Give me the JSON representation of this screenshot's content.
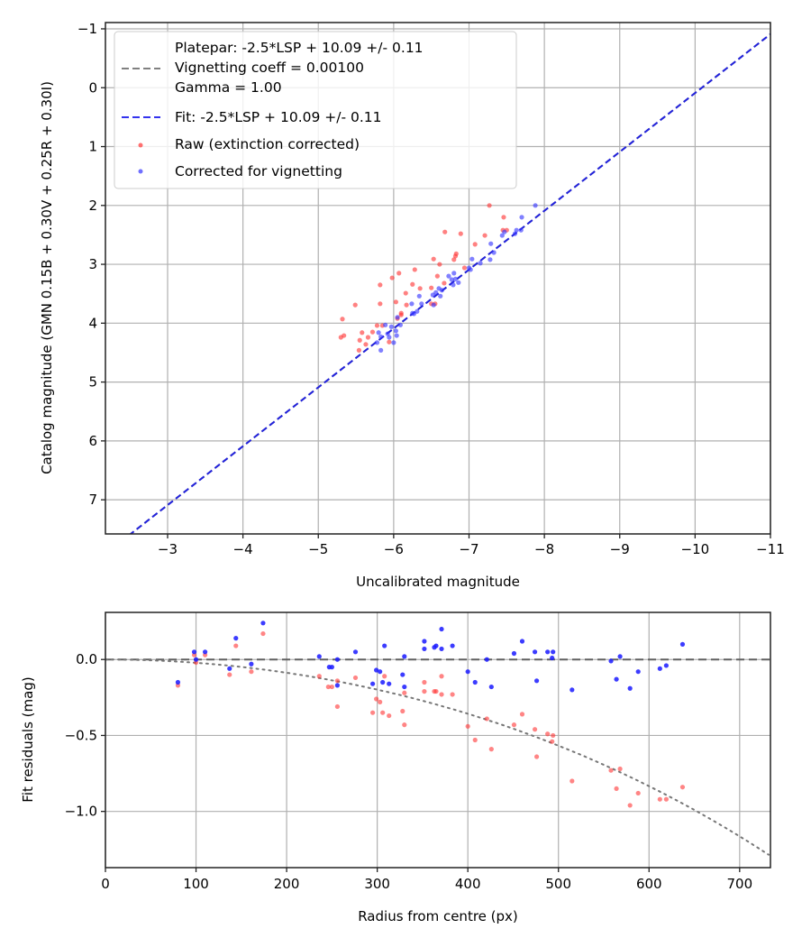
{
  "chart_data": [
    {
      "type": "scatter",
      "panel": "top",
      "xlabel": "Uncalibrated magnitude",
      "ylabel": "Catalog magnitude (GMN 0.15B + 0.30V + 0.25R + 0.30I)",
      "xlim": [
        -2.175,
        -11
      ],
      "ylim": [
        7.58,
        -1.107
      ],
      "x_inverted": true,
      "y_inverted": true,
      "xticks": [
        -3,
        -4,
        -5,
        -6,
        -7,
        -8,
        -9,
        -10,
        -11
      ],
      "xtick_labels": [
        "−3",
        "−4",
        "−5",
        "−6",
        "−7",
        "−8",
        "−9",
        "−10",
        "−11"
      ],
      "yticks": [
        -1,
        0,
        1,
        2,
        3,
        4,
        5,
        6,
        7
      ],
      "ytick_labels": [
        "−1",
        "0",
        "1",
        "2",
        "3",
        "4",
        "5",
        "6",
        "7"
      ],
      "grid": true,
      "legend_position": "top-left",
      "legend": [
        {
          "label": "Platepar: -2.5*LSP + 10.09 +/- 0.11",
          "style": "dashed",
          "color": "#808080"
        },
        {
          "label": "Vignetting coeff = 0.00100",
          "style": "none"
        },
        {
          "label": "Gamma = 1.00",
          "style": "none"
        },
        {
          "label": "Fit: -2.5*LSP + 10.09 +/- 0.11",
          "style": "dashed",
          "color": "#3333ee"
        },
        {
          "label": "Raw (extinction corrected)",
          "style": "dot",
          "color": "#ff4444"
        },
        {
          "label": "Corrected for vignetting",
          "style": "dot",
          "color": "#4444ff"
        }
      ],
      "lines": [
        {
          "name": "Platepar",
          "intercept": 10.09,
          "slope": 1,
          "color": "#808080",
          "style": "dashed"
        },
        {
          "name": "Fit",
          "intercept": 10.09,
          "slope": 1,
          "color": "#2222dd",
          "style": "dashed"
        }
      ],
      "series": [
        {
          "name": "Raw (extinction corrected)",
          "color": "#ff3333",
          "points": [
            [
              -7.27,
              2.0
            ],
            [
              -7.46,
              2.2
            ],
            [
              -6.68,
              2.45
            ],
            [
              -6.89,
              2.48
            ],
            [
              -7.08,
              2.66
            ],
            [
              -7.21,
              2.51
            ],
            [
              -7.45,
              2.42
            ],
            [
              -7.5,
              2.42
            ],
            [
              -6.83,
              2.82
            ],
            [
              -6.82,
              2.86
            ],
            [
              -6.8,
              2.92
            ],
            [
              -6.53,
              2.91
            ],
            [
              -6.61,
              3.0
            ],
            [
              -6.94,
              3.06
            ],
            [
              -6.07,
              3.15
            ],
            [
              -6.28,
              3.09
            ],
            [
              -5.98,
              3.23
            ],
            [
              -5.82,
              3.35
            ],
            [
              -6.25,
              3.34
            ],
            [
              -6.35,
              3.41
            ],
            [
              -6.58,
              3.2
            ],
            [
              -6.67,
              3.32
            ],
            [
              -6.5,
              3.4
            ],
            [
              -6.16,
              3.49
            ],
            [
              -5.49,
              3.69
            ],
            [
              -5.82,
              3.67
            ],
            [
              -6.03,
              3.64
            ],
            [
              -6.17,
              3.69
            ],
            [
              -6.5,
              3.67
            ],
            [
              -6.1,
              3.83
            ],
            [
              -6.55,
              3.67
            ],
            [
              -5.32,
              3.93
            ],
            [
              -5.3,
              4.24
            ],
            [
              -5.34,
              4.21
            ],
            [
              -5.58,
              4.16
            ],
            [
              -5.55,
              4.29
            ],
            [
              -5.66,
              4.24
            ],
            [
              -5.54,
              4.46
            ],
            [
              -5.63,
              4.36
            ],
            [
              -5.72,
              4.15
            ],
            [
              -5.78,
              4.04
            ],
            [
              -5.85,
              4.04
            ],
            [
              -5.94,
              4.32
            ],
            [
              -6.05,
              3.92
            ],
            [
              -6.1,
              3.86
            ]
          ]
        },
        {
          "name": "Corrected for vignetting",
          "color": "#3333ff",
          "points": [
            [
              -7.88,
              2.0
            ],
            [
              -7.7,
              2.2
            ],
            [
              -7.69,
              2.42
            ],
            [
              -7.63,
              2.42
            ],
            [
              -7.61,
              2.48
            ],
            [
              -7.47,
              2.45
            ],
            [
              -7.44,
              2.51
            ],
            [
              -7.29,
              2.65
            ],
            [
              -7.33,
              2.8
            ],
            [
              -7.28,
              2.92
            ],
            [
              -7.15,
              2.98
            ],
            [
              -7.04,
              2.91
            ],
            [
              -7.0,
              3.06
            ],
            [
              -7.02,
              3.09
            ],
            [
              -6.8,
              3.15
            ],
            [
              -6.73,
              3.2
            ],
            [
              -6.82,
              3.25
            ],
            [
              -6.77,
              3.26
            ],
            [
              -6.86,
              3.31
            ],
            [
              -6.79,
              3.35
            ],
            [
              -6.6,
              3.41
            ],
            [
              -6.64,
              3.44
            ],
            [
              -6.56,
              3.48
            ],
            [
              -6.52,
              3.52
            ],
            [
              -6.62,
              3.54
            ],
            [
              -6.34,
              3.54
            ],
            [
              -6.24,
              3.67
            ],
            [
              -6.37,
              3.67
            ],
            [
              -6.53,
              3.69
            ],
            [
              -6.31,
              3.8
            ],
            [
              -6.25,
              3.83
            ],
            [
              -6.27,
              3.84
            ],
            [
              -5.89,
              4.03
            ],
            [
              -5.97,
              4.06
            ],
            [
              -6.03,
              4.13
            ],
            [
              -5.8,
              4.16
            ],
            [
              -5.83,
              4.23
            ],
            [
              -5.94,
              4.24
            ],
            [
              -5.78,
              4.33
            ],
            [
              -6.0,
              4.33
            ],
            [
              -5.83,
              4.46
            ],
            [
              -5.92,
              4.18
            ],
            [
              -6.04,
              4.21
            ],
            [
              -6.05,
              3.9
            ],
            [
              -6.09,
              4.03
            ]
          ]
        }
      ]
    },
    {
      "type": "scatter",
      "panel": "bottom",
      "xlabel": "Radius from centre (px)",
      "ylabel": "Fit residuals (mag)",
      "xlim": [
        0,
        734
      ],
      "ylim": [
        -1.37,
        0.31
      ],
      "xticks": [
        0,
        100,
        200,
        300,
        400,
        500,
        600,
        700
      ],
      "xtick_labels": [
        "0",
        "100",
        "200",
        "300",
        "400",
        "500",
        "600",
        "700"
      ],
      "yticks": [
        0.0,
        -0.5,
        -1.0
      ],
      "ytick_labels": [
        "0.0",
        "−0.5",
        "−1.0"
      ],
      "grid": true,
      "lines": [
        {
          "name": "zero",
          "type": "hline",
          "y": 0,
          "color": "#555555",
          "style": "dashed"
        },
        {
          "name": "vignetting model",
          "type": "curve",
          "formula": "10*log10(cos(0.001*r))",
          "color": "#777777",
          "style": "dotted"
        }
      ],
      "series": [
        {
          "name": "Raw (extinction corrected)",
          "color": "#ff3333",
          "points": [
            [
              80,
              -0.17
            ],
            [
              98,
              0.03
            ],
            [
              100,
              -0.02
            ],
            [
              110,
              0.03
            ],
            [
              137,
              -0.1
            ],
            [
              144,
              0.09
            ],
            [
              161,
              -0.08
            ],
            [
              174,
              0.17
            ],
            [
              236,
              -0.11
            ],
            [
              246,
              -0.18
            ],
            [
              250,
              -0.18
            ],
            [
              256,
              -0.14
            ],
            [
              256,
              -0.31
            ],
            [
              276,
              -0.12
            ],
            [
              295,
              -0.35
            ],
            [
              299,
              -0.26
            ],
            [
              303,
              -0.28
            ],
            [
              306,
              -0.35
            ],
            [
              308,
              -0.11
            ],
            [
              313,
              -0.37
            ],
            [
              328,
              -0.34
            ],
            [
              330,
              -0.22
            ],
            [
              330,
              -0.43
            ],
            [
              352,
              -0.15
            ],
            [
              352,
              -0.21
            ],
            [
              363,
              -0.21
            ],
            [
              365,
              -0.21
            ],
            [
              371,
              -0.11
            ],
            [
              371,
              -0.23
            ],
            [
              383,
              -0.23
            ],
            [
              400,
              -0.44
            ],
            [
              408,
              -0.53
            ],
            [
              421,
              -0.39
            ],
            [
              426,
              -0.59
            ],
            [
              451,
              -0.43
            ],
            [
              460,
              -0.36
            ],
            [
              474,
              -0.46
            ],
            [
              476,
              -0.64
            ],
            [
              488,
              -0.49
            ],
            [
              493,
              -0.54
            ],
            [
              494,
              -0.5
            ],
            [
              515,
              -0.8
            ],
            [
              558,
              -0.73
            ],
            [
              564,
              -0.85
            ],
            [
              568,
              -0.72
            ],
            [
              579,
              -0.96
            ],
            [
              588,
              -0.88
            ],
            [
              612,
              -0.92
            ],
            [
              619,
              -0.92
            ],
            [
              637,
              -0.84
            ]
          ]
        },
        {
          "name": "Corrected for vignetting",
          "color": "#1a1aff",
          "points": [
            [
              80,
              -0.15
            ],
            [
              98,
              0.05
            ],
            [
              100,
              0.0
            ],
            [
              110,
              0.05
            ],
            [
              137,
              -0.06
            ],
            [
              144,
              0.14
            ],
            [
              161,
              -0.03
            ],
            [
              174,
              0.24
            ],
            [
              236,
              0.02
            ],
            [
              247,
              -0.05
            ],
            [
              250,
              -0.05
            ],
            [
              256,
              0.0
            ],
            [
              256,
              -0.17
            ],
            [
              276,
              0.05
            ],
            [
              295,
              -0.16
            ],
            [
              299,
              -0.07
            ],
            [
              303,
              -0.08
            ],
            [
              306,
              -0.15
            ],
            [
              308,
              0.09
            ],
            [
              313,
              -0.16
            ],
            [
              328,
              -0.1
            ],
            [
              330,
              0.02
            ],
            [
              330,
              -0.18
            ],
            [
              352,
              0.12
            ],
            [
              352,
              0.07
            ],
            [
              363,
              0.08
            ],
            [
              365,
              0.09
            ],
            [
              371,
              0.2
            ],
            [
              371,
              0.07
            ],
            [
              383,
              0.09
            ],
            [
              400,
              -0.08
            ],
            [
              408,
              -0.15
            ],
            [
              421,
              0.0
            ],
            [
              426,
              -0.18
            ],
            [
              451,
              0.04
            ],
            [
              460,
              0.12
            ],
            [
              474,
              0.05
            ],
            [
              476,
              -0.14
            ],
            [
              488,
              0.05
            ],
            [
              493,
              0.01
            ],
            [
              494,
              0.05
            ],
            [
              515,
              -0.2
            ],
            [
              558,
              -0.01
            ],
            [
              564,
              -0.13
            ],
            [
              568,
              0.02
            ],
            [
              579,
              -0.19
            ],
            [
              588,
              -0.08
            ],
            [
              612,
              -0.06
            ],
            [
              619,
              -0.04
            ],
            [
              637,
              0.1
            ]
          ]
        }
      ]
    }
  ]
}
